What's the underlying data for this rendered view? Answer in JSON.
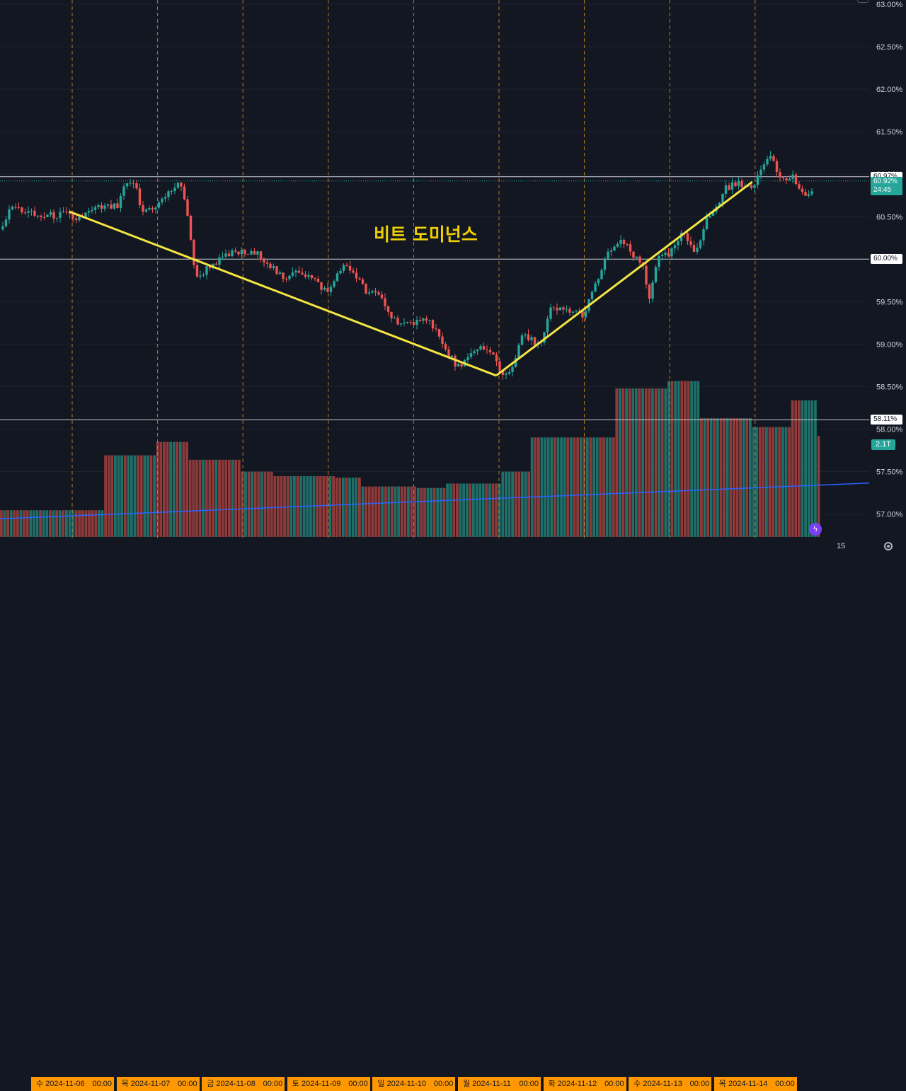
{
  "chart_data": {
    "type": "candlestick",
    "title": "",
    "annotation": "비트 도미넌스",
    "x_date_labels": [
      {
        "day": "수",
        "date": "2024-11-06",
        "time": "00:00"
      },
      {
        "day": "목",
        "date": "2024-11-07",
        "time": "00:00"
      },
      {
        "day": "금",
        "date": "2024-11-08",
        "time": "00:00"
      },
      {
        "day": "토",
        "date": "2024-11-09",
        "time": "00:00"
      },
      {
        "day": "일",
        "date": "2024-11-10",
        "time": "00:00"
      },
      {
        "day": "월",
        "date": "2024-11-11",
        "time": "00:00"
      },
      {
        "day": "화",
        "date": "2024-11-12",
        "time": "00:00"
      },
      {
        "day": "수",
        "date": "2024-11-13",
        "time": "00:00"
      },
      {
        "day": "목",
        "date": "2024-11-14",
        "time": "00:00"
      }
    ],
    "y_tick_labels": [
      "63.00%",
      "62.50%",
      "62.00%",
      "61.50%",
      "61.00%",
      "60.50%",
      "60.00%",
      "59.50%",
      "59.00%",
      "58.50%",
      "58.00%",
      "57.50%",
      "57.00%"
    ],
    "y_range": [
      56.85,
      63.05
    ],
    "horizontal_levels": [
      {
        "value": 60.97,
        "label": "60.97%"
      },
      {
        "value": 60.0,
        "label": "60.00%"
      },
      {
        "value": 58.11,
        "label": "58.11%"
      }
    ],
    "current_price": {
      "value": 60.92,
      "label": "60.92%",
      "countdown": "24:45"
    },
    "volume_label": "2.1T",
    "zoom_label": "15",
    "trend_points": [
      {
        "date": "2024-11-06 00:00",
        "value": 60.56
      },
      {
        "date": "2024-11-11 00:00",
        "value": 58.63
      },
      {
        "date": "2024-11-14 00:00",
        "value": 60.91
      }
    ],
    "price_waypoints": [
      {
        "day": -0.85,
        "value": 60.35
      },
      {
        "day": -0.7,
        "value": 60.62
      },
      {
        "day": -0.4,
        "value": 60.5
      },
      {
        "day": -0.05,
        "value": 60.53
      },
      {
        "day": 0.0,
        "value": 60.45
      },
      {
        "day": 0.3,
        "value": 60.6
      },
      {
        "day": 0.55,
        "value": 60.62
      },
      {
        "day": 0.6,
        "value": 60.85
      },
      {
        "day": 0.75,
        "value": 60.88
      },
      {
        "day": 0.8,
        "value": 60.55
      },
      {
        "day": 1.0,
        "value": 60.64
      },
      {
        "day": 1.2,
        "value": 60.85
      },
      {
        "day": 1.25,
        "value": 60.92
      },
      {
        "day": 1.35,
        "value": 60.55
      },
      {
        "day": 1.45,
        "value": 59.75
      },
      {
        "day": 1.6,
        "value": 59.92
      },
      {
        "day": 1.9,
        "value": 60.08
      },
      {
        "day": 2.2,
        "value": 60.05
      },
      {
        "day": 2.35,
        "value": 59.9
      },
      {
        "day": 2.5,
        "value": 59.72
      },
      {
        "day": 2.6,
        "value": 59.9
      },
      {
        "day": 2.8,
        "value": 59.78
      },
      {
        "day": 3.0,
        "value": 59.6
      },
      {
        "day": 3.15,
        "value": 59.92
      },
      {
        "day": 3.3,
        "value": 59.85
      },
      {
        "day": 3.45,
        "value": 59.6
      },
      {
        "day": 3.6,
        "value": 59.58
      },
      {
        "day": 3.75,
        "value": 59.3
      },
      {
        "day": 4.0,
        "value": 59.2
      },
      {
        "day": 4.1,
        "value": 59.35
      },
      {
        "day": 4.25,
        "value": 59.2
      },
      {
        "day": 4.35,
        "value": 58.95
      },
      {
        "day": 4.55,
        "value": 58.7
      },
      {
        "day": 4.75,
        "value": 58.98
      },
      {
        "day": 4.95,
        "value": 58.85
      },
      {
        "day": 5.05,
        "value": 58.62
      },
      {
        "day": 5.2,
        "value": 58.8
      },
      {
        "day": 5.25,
        "value": 59.1
      },
      {
        "day": 5.5,
        "value": 59.0
      },
      {
        "day": 5.6,
        "value": 59.4
      },
      {
        "day": 5.8,
        "value": 59.4
      },
      {
        "day": 6.0,
        "value": 59.35
      },
      {
        "day": 6.1,
        "value": 59.62
      },
      {
        "day": 6.3,
        "value": 60.12
      },
      {
        "day": 6.45,
        "value": 60.2
      },
      {
        "day": 6.6,
        "value": 60.0
      },
      {
        "day": 6.7,
        "value": 59.9
      },
      {
        "day": 6.75,
        "value": 59.5
      },
      {
        "day": 6.85,
        "value": 60.0
      },
      {
        "day": 7.0,
        "value": 60.05
      },
      {
        "day": 7.15,
        "value": 60.3
      },
      {
        "day": 7.3,
        "value": 60.1
      },
      {
        "day": 7.45,
        "value": 60.5
      },
      {
        "day": 7.55,
        "value": 60.6
      },
      {
        "day": 7.65,
        "value": 60.85
      },
      {
        "day": 7.9,
        "value": 60.9
      },
      {
        "day": 7.95,
        "value": 60.78
      },
      {
        "day": 8.0,
        "value": 60.9
      },
      {
        "day": 8.1,
        "value": 61.15
      },
      {
        "day": 8.2,
        "value": 61.25
      },
      {
        "day": 8.3,
        "value": 60.92
      },
      {
        "day": 8.45,
        "value": 60.97
      },
      {
        "day": 8.55,
        "value": 60.75
      },
      {
        "day": 8.6,
        "value": 60.7
      },
      {
        "day": 8.7,
        "value": 60.92
      }
    ],
    "volume_steps": [
      {
        "day": -0.85,
        "height": 0.18
      },
      {
        "day": 0.35,
        "height": 0.55
      },
      {
        "day": 0.95,
        "height": 0.64
      },
      {
        "day": 1.35,
        "height": 0.52
      },
      {
        "day": 1.95,
        "height": 0.44
      },
      {
        "day": 2.35,
        "height": 0.41
      },
      {
        "day": 3.05,
        "height": 0.4
      },
      {
        "day": 3.35,
        "height": 0.34
      },
      {
        "day": 4.0,
        "height": 0.33
      },
      {
        "day": 4.35,
        "height": 0.36
      },
      {
        "day": 5.0,
        "height": 0.44
      },
      {
        "day": 5.35,
        "height": 0.67
      },
      {
        "day": 5.95,
        "height": 0.67
      },
      {
        "day": 6.35,
        "height": 1.0
      },
      {
        "day": 6.95,
        "height": 1.05
      },
      {
        "day": 7.35,
        "height": 0.8
      },
      {
        "day": 7.95,
        "height": 0.74
      },
      {
        "day": 8.4,
        "height": 0.92
      },
      {
        "day": 8.7,
        "height": 0.68
      },
      {
        "day": 8.75,
        "height": 0.68
      }
    ],
    "volume_ma": {
      "start": 0.17,
      "end": 0.42
    },
    "colors": {
      "up": "#26a69a",
      "down": "#ef5350",
      "up_vol": "#1f6e67",
      "down_vol": "#8f3a39",
      "trend": "#f4e542",
      "volume_ma": "#2962ff",
      "session": "#d98c1a",
      "grid": "#1e222d"
    }
  }
}
